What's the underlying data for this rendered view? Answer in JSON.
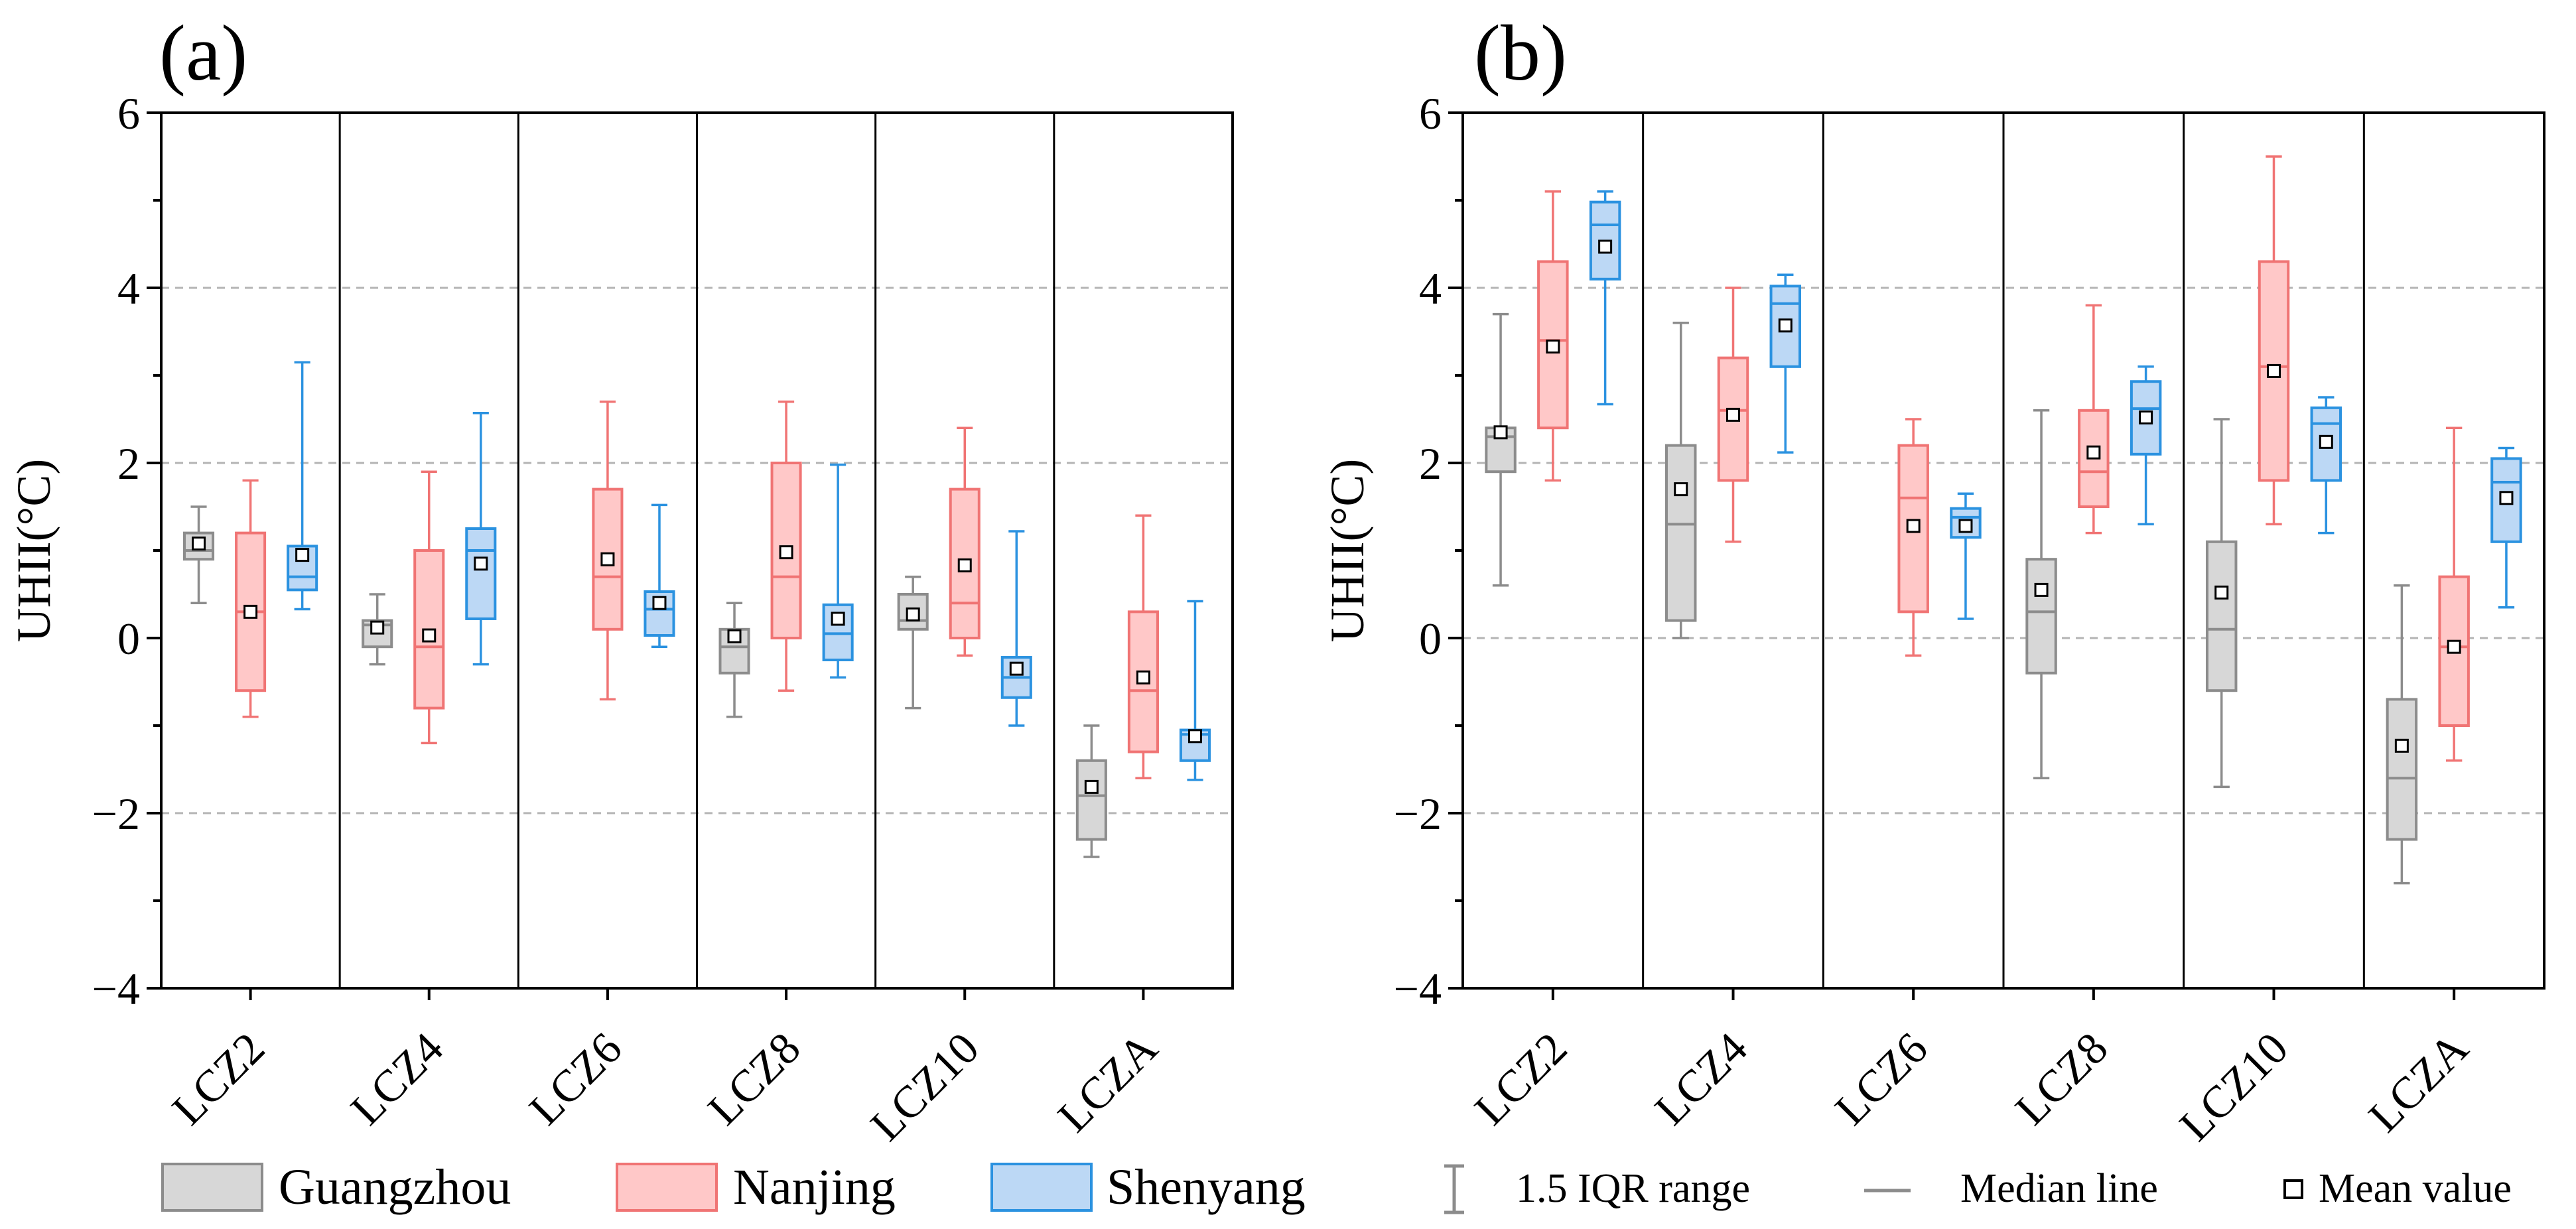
{
  "colors": {
    "guangzhou": {
      "fill": "#d7d7d7",
      "stroke": "#8c8c8c"
    },
    "nanjing": {
      "fill": "#ffc8c8",
      "stroke": "#f07474"
    },
    "shenyang": {
      "fill": "#bcd8f5",
      "stroke": "#2b92e0"
    },
    "grid": "#b4b4b4",
    "axis": "#000000"
  },
  "legend": {
    "series": [
      {
        "key": "guangzhou",
        "label": "Guangzhou"
      },
      {
        "key": "nanjing",
        "label": "Nanjing"
      },
      {
        "key": "shenyang",
        "label": "Shenyang"
      }
    ],
    "iqr_label": "1.5 IQR range",
    "median_label": "Median line",
    "mean_label": "Mean value"
  },
  "chart_data": [
    {
      "type": "box",
      "panel_label": "(a)",
      "ylabel": "UHII(°C)",
      "ylim": [
        -4,
        6
      ],
      "yticks": [
        -4,
        -2,
        0,
        2,
        4,
        6
      ],
      "grid_y": [
        -2,
        2,
        4
      ],
      "categories": [
        "LCZ2",
        "LCZ4",
        "LCZ6",
        "LCZ8",
        "LCZ10",
        "LCZA"
      ],
      "series": [
        {
          "name": "Guangzhou",
          "key": "guangzhou",
          "boxes": [
            {
              "min": 0.4,
              "q1": 0.9,
              "median": 1.0,
              "q3": 1.2,
              "max": 1.5,
              "mean": 1.08
            },
            {
              "min": -0.3,
              "q1": -0.1,
              "median": 0.15,
              "q3": 0.2,
              "max": 0.5,
              "mean": 0.12
            },
            null,
            {
              "min": -0.9,
              "q1": -0.4,
              "median": -0.1,
              "q3": 0.1,
              "max": 0.4,
              "mean": 0.02
            },
            {
              "min": -0.8,
              "q1": 0.1,
              "median": 0.2,
              "q3": 0.5,
              "max": 0.7,
              "mean": 0.27
            },
            {
              "min": -2.5,
              "q1": -2.3,
              "median": -1.8,
              "q3": -1.4,
              "max": -1.0,
              "mean": -1.7
            }
          ]
        },
        {
          "name": "Nanjing",
          "key": "nanjing",
          "boxes": [
            {
              "min": -0.9,
              "q1": -0.6,
              "median": 0.3,
              "q3": 1.2,
              "max": 1.8,
              "mean": 0.3
            },
            {
              "min": -1.2,
              "q1": -0.8,
              "median": -0.1,
              "q3": 1.0,
              "max": 1.9,
              "mean": 0.03
            },
            {
              "min": -0.7,
              "q1": 0.1,
              "median": 0.7,
              "q3": 1.7,
              "max": 2.7,
              "mean": 0.9
            },
            {
              "min": -0.6,
              "q1": 0.0,
              "median": 0.7,
              "q3": 2.0,
              "max": 2.7,
              "mean": 0.98
            },
            {
              "min": -0.2,
              "q1": 0.0,
              "median": 0.4,
              "q3": 1.7,
              "max": 2.4,
              "mean": 0.83
            },
            {
              "min": -1.6,
              "q1": -1.3,
              "median": -0.6,
              "q3": 0.3,
              "max": 1.4,
              "mean": -0.45
            }
          ]
        },
        {
          "name": "Shenyang",
          "key": "shenyang",
          "boxes": [
            {
              "min": 0.33,
              "q1": 0.55,
              "median": 0.7,
              "q3": 1.05,
              "max": 3.15,
              "mean": 0.95
            },
            {
              "min": -0.3,
              "q1": 0.22,
              "median": 1.0,
              "q3": 1.25,
              "max": 2.57,
              "mean": 0.85
            },
            {
              "min": -0.1,
              "q1": 0.03,
              "median": 0.33,
              "q3": 0.53,
              "max": 1.52,
              "mean": 0.4
            },
            {
              "min": -0.45,
              "q1": -0.25,
              "median": 0.05,
              "q3": 0.38,
              "max": 1.98,
              "mean": 0.22
            },
            {
              "min": -1.0,
              "q1": -0.68,
              "median": -0.45,
              "q3": -0.22,
              "max": 1.22,
              "mean": -0.35
            },
            {
              "min": -1.62,
              "q1": -1.4,
              "median": -1.1,
              "q3": -1.05,
              "max": 0.42,
              "mean": -1.12
            }
          ]
        }
      ]
    },
    {
      "type": "box",
      "panel_label": "(b)",
      "ylabel": "UHII(°C)",
      "ylim": [
        -4,
        6
      ],
      "yticks": [
        -4,
        -2,
        0,
        2,
        4,
        6
      ],
      "grid_y": [
        -2,
        0,
        2,
        4
      ],
      "categories": [
        "LCZ2",
        "LCZ4",
        "LCZ6",
        "LCZ8",
        "LCZ10",
        "LCZA"
      ],
      "series": [
        {
          "name": "Guangzhou",
          "key": "guangzhou",
          "boxes": [
            {
              "min": 0.6,
              "q1": 1.9,
              "median": 2.3,
              "q3": 2.4,
              "max": 3.7,
              "mean": 2.35
            },
            {
              "min": 0.0,
              "q1": 0.2,
              "median": 1.3,
              "q3": 2.2,
              "max": 3.6,
              "mean": 1.7
            },
            null,
            {
              "min": -1.6,
              "q1": -0.4,
              "median": 0.3,
              "q3": 0.9,
              "max": 2.6,
              "mean": 0.55
            },
            {
              "min": -1.7,
              "q1": -0.6,
              "median": 0.1,
              "q3": 1.1,
              "max": 2.5,
              "mean": 0.52
            },
            {
              "min": -2.8,
              "q1": -2.3,
              "median": -1.6,
              "q3": -0.7,
              "max": 0.6,
              "mean": -1.23
            }
          ]
        },
        {
          "name": "Nanjing",
          "key": "nanjing",
          "boxes": [
            {
              "min": 1.8,
              "q1": 2.4,
              "median": 3.4,
              "q3": 4.3,
              "max": 5.1,
              "mean": 3.33
            },
            {
              "min": 1.1,
              "q1": 1.8,
              "median": 2.6,
              "q3": 3.2,
              "max": 4.0,
              "mean": 2.55
            },
            {
              "min": -0.2,
              "q1": 0.3,
              "median": 1.6,
              "q3": 2.2,
              "max": 2.5,
              "mean": 1.28
            },
            {
              "min": 1.2,
              "q1": 1.5,
              "median": 1.9,
              "q3": 2.6,
              "max": 3.8,
              "mean": 2.12
            },
            {
              "min": 1.3,
              "q1": 1.8,
              "median": 3.1,
              "q3": 4.3,
              "max": 5.5,
              "mean": 3.05
            },
            {
              "min": -1.4,
              "q1": -1.0,
              "median": -0.1,
              "q3": 0.7,
              "max": 2.4,
              "mean": -0.1
            }
          ]
        },
        {
          "name": "Shenyang",
          "key": "shenyang",
          "boxes": [
            {
              "min": 2.67,
              "q1": 4.1,
              "median": 4.72,
              "q3": 4.98,
              "max": 5.1,
              "mean": 4.47
            },
            {
              "min": 2.12,
              "q1": 3.1,
              "median": 3.82,
              "q3": 4.02,
              "max": 4.15,
              "mean": 3.57
            },
            {
              "min": 0.22,
              "q1": 1.15,
              "median": 1.38,
              "q3": 1.48,
              "max": 1.65,
              "mean": 1.28
            },
            {
              "min": 1.3,
              "q1": 2.1,
              "median": 2.62,
              "q3": 2.93,
              "max": 3.1,
              "mean": 2.52
            },
            {
              "min": 1.2,
              "q1": 1.8,
              "median": 2.45,
              "q3": 2.63,
              "max": 2.75,
              "mean": 2.24
            },
            {
              "min": 0.35,
              "q1": 1.1,
              "median": 1.78,
              "q3": 2.05,
              "max": 2.17,
              "mean": 1.6
            }
          ]
        }
      ]
    }
  ]
}
